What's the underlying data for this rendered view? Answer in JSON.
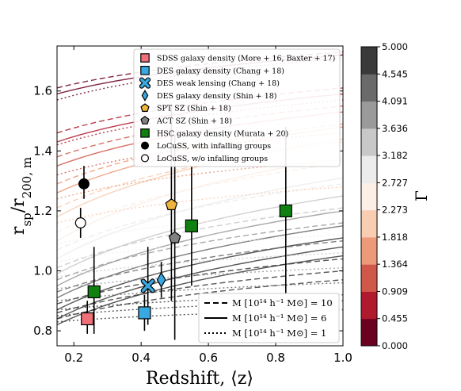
{
  "chart_data": {
    "type": "scatter",
    "xlabel": "Redshift, ⟨z⟩",
    "ylabel": "r_sp/r_200,m",
    "xlim": [
      0.15,
      1.0
    ],
    "ylim": [
      0.75,
      1.75
    ],
    "xticks": [
      "0.2",
      "0.4",
      "0.6",
      "0.8",
      "1.0"
    ],
    "yticks": [
      "0.8",
      "1.0",
      "1.2",
      "1.4",
      "1.6"
    ],
    "grid": false,
    "legend_position": "top-right",
    "series": [
      {
        "name": "SDSS galaxy density (More + 16, Baxter + 17)",
        "marker": "square",
        "color": "#f0707a",
        "points": [
          {
            "x": 0.24,
            "y": 0.84,
            "ylo": 0.79,
            "yhi": 0.9
          }
        ]
      },
      {
        "name": "DES galaxy density (Chang + 18)",
        "marker": "square",
        "color": "#3aa8e0",
        "points": [
          {
            "x": 0.41,
            "y": 0.86,
            "ylo": 0.8,
            "yhi": 0.92
          }
        ]
      },
      {
        "name": "DES weak lensing (Chang + 18)",
        "marker": "x",
        "color": "#3aa8e0",
        "points": [
          {
            "x": 0.42,
            "y": 0.95,
            "ylo": 0.82,
            "yhi": 1.08
          }
        ]
      },
      {
        "name": "DES galaxy density (Shin + 18)",
        "marker": "diamond",
        "color": "#3aa8e0",
        "points": [
          {
            "x": 0.46,
            "y": 0.97,
            "ylo": 0.91,
            "yhi": 1.03
          }
        ]
      },
      {
        "name": "SPT SZ (Shin + 18)",
        "marker": "pentagon",
        "color": "#f0b43c",
        "points": [
          {
            "x": 0.49,
            "y": 1.22,
            "ylo": 0.9,
            "yhi": 1.54
          }
        ]
      },
      {
        "name": "ACT SZ (Shin + 18)",
        "marker": "pentagon",
        "color": "#808080",
        "points": [
          {
            "x": 0.5,
            "y": 1.11,
            "ylo": 0.77,
            "yhi": 1.45
          }
        ]
      },
      {
        "name": "HSC galaxy density (Murata + 20)",
        "marker": "square",
        "color": "#108010",
        "points": [
          {
            "x": 0.26,
            "y": 0.93,
            "ylo": 0.79,
            "yhi": 1.08
          },
          {
            "x": 0.55,
            "y": 1.15,
            "ylo": 0.95,
            "yhi": 1.35
          },
          {
            "x": 0.83,
            "y": 1.2,
            "ylo": 0.92,
            "yhi": 1.48
          }
        ]
      },
      {
        "name": "LoCuSS, with infalling groups",
        "marker": "circle",
        "color": "#000000",
        "points": [
          {
            "x": 0.23,
            "y": 1.29,
            "ylo": 1.24,
            "yhi": 1.35
          }
        ]
      },
      {
        "name": "LoCuSS, w/o infalling groups",
        "marker": "circle-open",
        "color": "#ffffff",
        "points": [
          {
            "x": 0.22,
            "y": 1.16,
            "ylo": 1.11,
            "yhi": 1.21
          }
        ]
      }
    ],
    "line_styles": [
      {
        "label": "M [10¹⁴ h⁻¹ M⊙] = 10",
        "style": "dashed"
      },
      {
        "label": "M [10¹⁴ h⁻¹ M⊙] = 6",
        "style": "solid"
      },
      {
        "label": "M [10¹⁴ h⁻¹ M⊙] = 1",
        "style": "dotted"
      }
    ],
    "colorbar": {
      "label": "Γ",
      "range": [
        0.0,
        5.0
      ],
      "ticks": [
        "0.000",
        "0.455",
        "0.909",
        "1.364",
        "1.818",
        "2.273",
        "2.727",
        "3.182",
        "3.636",
        "4.091",
        "4.545",
        "5.000"
      ],
      "colors": [
        "#6b0020",
        "#b01a2e",
        "#d0584a",
        "#ec9a78",
        "#f8cdb2",
        "#fcefe6",
        "#ececec",
        "#c8c8c8",
        "#9a9a9a",
        "#6a6a6a",
        "#3a3a3a"
      ]
    }
  }
}
